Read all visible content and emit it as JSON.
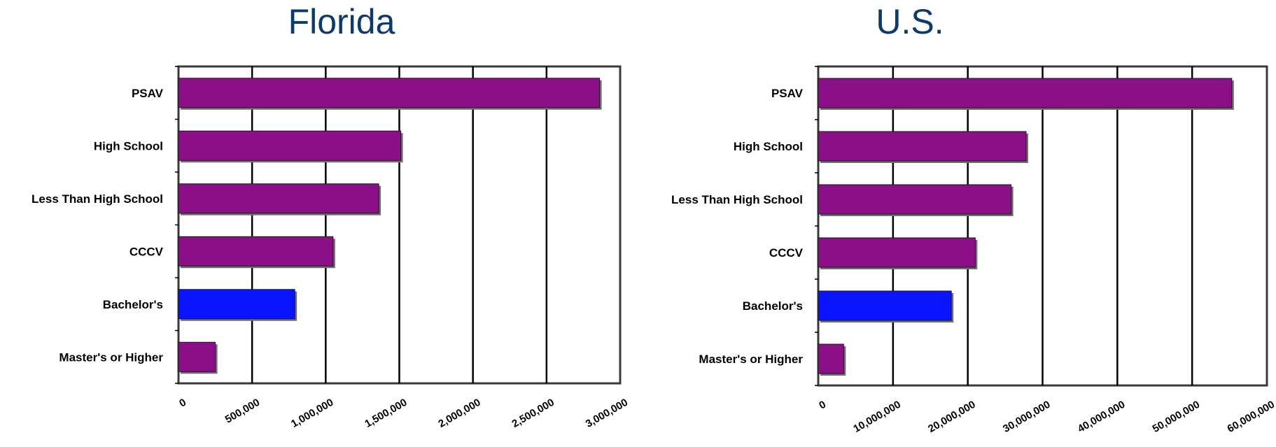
{
  "chart_data": [
    {
      "type": "bar",
      "orientation": "horizontal",
      "title": "Florida",
      "categories": [
        "PSAV",
        "High School",
        "Less Than High School",
        "CCCV",
        "Bachelor's",
        "Master's or Higher"
      ],
      "values": [
        2860000,
        1510000,
        1360000,
        1050000,
        790000,
        250000
      ],
      "bar_colors": [
        "#8b0f86",
        "#8b0f86",
        "#8b0f86",
        "#8b0f86",
        "#0a14ff",
        "#8b0f86"
      ],
      "xlim": [
        0,
        3000000
      ],
      "xticks": [
        "0",
        "500,000",
        "1,000,000",
        "1,500,000",
        "2,000,000",
        "2,500,000",
        "3,000,000"
      ],
      "grid": true,
      "legend": "none"
    },
    {
      "type": "bar",
      "orientation": "horizontal",
      "title": "U.S.",
      "categories": [
        "PSAV",
        "High School",
        "Less Than High School",
        "CCCV",
        "Bachelor's",
        "Master's or Higher"
      ],
      "values": [
        55300000,
        27800000,
        25800000,
        21000000,
        17800000,
        3400000
      ],
      "bar_colors": [
        "#8b0f86",
        "#8b0f86",
        "#8b0f86",
        "#8b0f86",
        "#0a14ff",
        "#8b0f86"
      ],
      "xlim": [
        0,
        60000000
      ],
      "xticks": [
        "0",
        "10,000,000",
        "20,000,000",
        "30,000,000",
        "40,000,000",
        "50,000,000",
        "60,000,000"
      ],
      "grid": true,
      "legend": "none"
    }
  ]
}
